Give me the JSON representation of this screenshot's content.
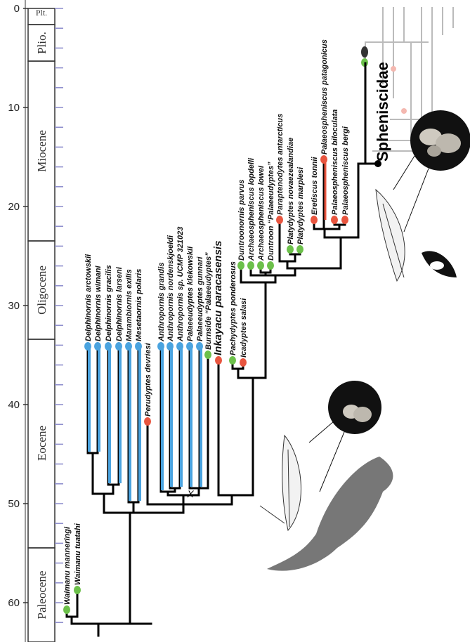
{
  "axis": {
    "ticks": [
      0,
      10,
      20,
      30,
      40,
      50,
      60
    ]
  },
  "epochs": [
    "Plt.",
    "Plio.",
    "Miocene",
    "Oligocene",
    "Eocene",
    "Paleocene"
  ],
  "taxa": [
    "Waimanu manneringi",
    "Waimanu tuatahi",
    "Delphinornis arctowskii",
    "Delphinornis wimani",
    "Delphinornis gracilis",
    "Delphinornis larseni",
    "Marambiornis exilis",
    "Mesetaornis polaris",
    "Perudyptes devriesi",
    "Anthropornis grandis",
    "Anthropornis nordenskjoeldi",
    "Anthropornis sp. UCMP 321023",
    "Palaeeudyptes klekowskii",
    "Palaeeudyptes gunnari",
    "Burnside “Palaeeudyptes”",
    "Inkayacu paracasensis",
    "Pachydyptes ponderosus",
    "Icadyptes salasi",
    "Duntroonornis parvus",
    "Archaeospheniscus lopdelli",
    "Archaeospheniscus lowei",
    "Duntroon “Palaeeudyptes”",
    "Paraptenodytes antarcticus",
    "Platydyptes novaezealandiae",
    "Platydyptes marplesi",
    "Eretiscus tonnii",
    "Palaeospheniscus patagonicus",
    "Palaeospheniscus biloculata",
    "Palaeospheniscus bergi"
  ],
  "clade_label": "Spheniscidae",
  "node_label": "X"
}
